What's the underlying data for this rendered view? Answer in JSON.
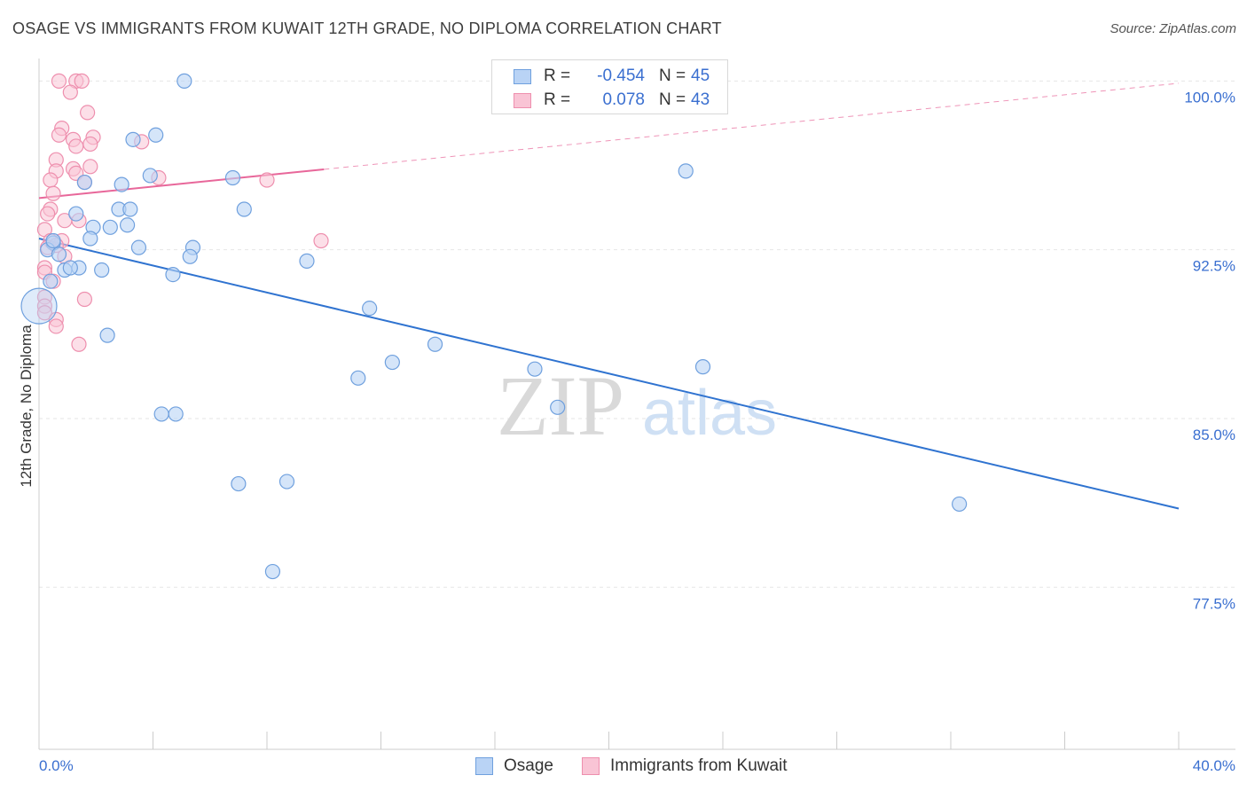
{
  "header": {
    "title": "OSAGE VS IMMIGRANTS FROM KUWAIT 12TH GRADE, NO DIPLOMA CORRELATION CHART",
    "source": "Source: ZipAtlas.com"
  },
  "legend": {
    "rows": [
      {
        "r_label": "R =",
        "r_value": "-0.454",
        "n_label": "N =",
        "n_value": "45"
      },
      {
        "r_label": "R =",
        "r_value": "0.078",
        "n_label": "N =",
        "n_value": "43"
      }
    ]
  },
  "colors": {
    "osage_fill": "#b9d3f5",
    "osage_stroke": "#6fa0de",
    "osage_line": "#2f73d0",
    "kuwait_fill": "#f9c4d5",
    "kuwait_stroke": "#ee8fae",
    "kuwait_line": "#e8679a",
    "tick_label": "#3a6fd0",
    "grid": "#e6e6e6"
  },
  "watermark": {
    "zip": "ZIP",
    "atlas": "atlas"
  },
  "chart_data": {
    "type": "scatter",
    "title": "OSAGE VS IMMIGRANTS FROM KUWAIT 12TH GRADE, NO DIPLOMA CORRELATION CHART",
    "xlabel": "",
    "ylabel": "12th Grade, No Diploma",
    "xlim": [
      0,
      0.4
    ],
    "ylim": [
      70.3,
      101.0
    ],
    "x_tick_labels": [
      {
        "value": 0,
        "label": "0.0%"
      },
      {
        "value": 0.4,
        "label": "40.0%"
      }
    ],
    "y_ticks": [
      {
        "value": 100.0,
        "label": "100.0%"
      },
      {
        "value": 92.5,
        "label": "92.5%"
      },
      {
        "value": 85.0,
        "label": "85.0%"
      },
      {
        "value": 77.5,
        "label": "77.5%"
      }
    ],
    "grid": true,
    "legend_position": "top-center",
    "series": [
      {
        "name": "Osage",
        "points": [
          [
            0.051,
            100.0
          ],
          [
            0.033,
            97.4
          ],
          [
            0.041,
            97.6
          ],
          [
            0.227,
            96.0
          ],
          [
            0.039,
            95.8
          ],
          [
            0.068,
            95.7
          ],
          [
            0.029,
            95.4
          ],
          [
            0.016,
            95.5
          ],
          [
            0.028,
            94.3
          ],
          [
            0.032,
            94.3
          ],
          [
            0.072,
            94.3
          ],
          [
            0.013,
            94.1
          ],
          [
            0.019,
            93.5
          ],
          [
            0.025,
            93.5
          ],
          [
            0.031,
            93.6
          ],
          [
            0.018,
            93.0
          ],
          [
            0.005,
            92.8
          ],
          [
            0.003,
            92.5
          ],
          [
            0.007,
            92.3
          ],
          [
            0.035,
            92.6
          ],
          [
            0.054,
            92.6
          ],
          [
            0.053,
            92.2
          ],
          [
            0.094,
            92.0
          ],
          [
            0.014,
            91.7
          ],
          [
            0.009,
            91.6
          ],
          [
            0.011,
            91.7
          ],
          [
            0.022,
            91.6
          ],
          [
            0.047,
            91.4
          ],
          [
            0.004,
            91.1
          ],
          [
            0.116,
            89.9
          ],
          [
            0.0,
            90.0
          ],
          [
            0.024,
            88.7
          ],
          [
            0.139,
            88.3
          ],
          [
            0.124,
            87.5
          ],
          [
            0.174,
            87.2
          ],
          [
            0.112,
            86.8
          ],
          [
            0.233,
            87.3
          ],
          [
            0.182,
            85.5
          ],
          [
            0.043,
            85.2
          ],
          [
            0.048,
            85.2
          ],
          [
            0.07,
            82.1
          ],
          [
            0.087,
            82.2
          ],
          [
            0.082,
            78.2
          ],
          [
            0.323,
            81.2
          ],
          [
            0.005,
            92.9
          ]
        ],
        "trend": {
          "x": [
            0.0,
            0.4
          ],
          "y": [
            93.0,
            81.0
          ]
        }
      },
      {
        "name": "Immigrants from Kuwait",
        "points": [
          [
            0.007,
            100.0
          ],
          [
            0.013,
            100.0
          ],
          [
            0.015,
            100.0
          ],
          [
            0.011,
            99.5
          ],
          [
            0.017,
            98.6
          ],
          [
            0.008,
            97.9
          ],
          [
            0.007,
            97.6
          ],
          [
            0.036,
            97.3
          ],
          [
            0.019,
            97.5
          ],
          [
            0.012,
            97.4
          ],
          [
            0.013,
            97.1
          ],
          [
            0.018,
            97.2
          ],
          [
            0.006,
            96.5
          ],
          [
            0.012,
            96.1
          ],
          [
            0.018,
            96.2
          ],
          [
            0.006,
            96.0
          ],
          [
            0.013,
            95.9
          ],
          [
            0.004,
            95.6
          ],
          [
            0.016,
            95.5
          ],
          [
            0.042,
            95.7
          ],
          [
            0.08,
            95.6
          ],
          [
            0.005,
            95.0
          ],
          [
            0.004,
            94.3
          ],
          [
            0.003,
            94.1
          ],
          [
            0.009,
            93.8
          ],
          [
            0.014,
            93.8
          ],
          [
            0.002,
            93.4
          ],
          [
            0.004,
            92.9
          ],
          [
            0.008,
            92.9
          ],
          [
            0.099,
            92.9
          ],
          [
            0.003,
            92.6
          ],
          [
            0.006,
            92.7
          ],
          [
            0.009,
            92.2
          ],
          [
            0.002,
            91.7
          ],
          [
            0.002,
            91.5
          ],
          [
            0.005,
            91.1
          ],
          [
            0.016,
            90.3
          ],
          [
            0.002,
            90.4
          ],
          [
            0.002,
            90.0
          ],
          [
            0.002,
            89.7
          ],
          [
            0.006,
            89.4
          ],
          [
            0.006,
            89.1
          ],
          [
            0.014,
            88.3
          ]
        ],
        "trend": {
          "x": [
            0.0,
            0.4
          ],
          "y": [
            94.8,
            99.9
          ],
          "solid_until_x": 0.1
        }
      }
    ]
  },
  "bottom_legend": [
    {
      "label": "Osage"
    },
    {
      "label": "Immigrants from Kuwait"
    }
  ]
}
